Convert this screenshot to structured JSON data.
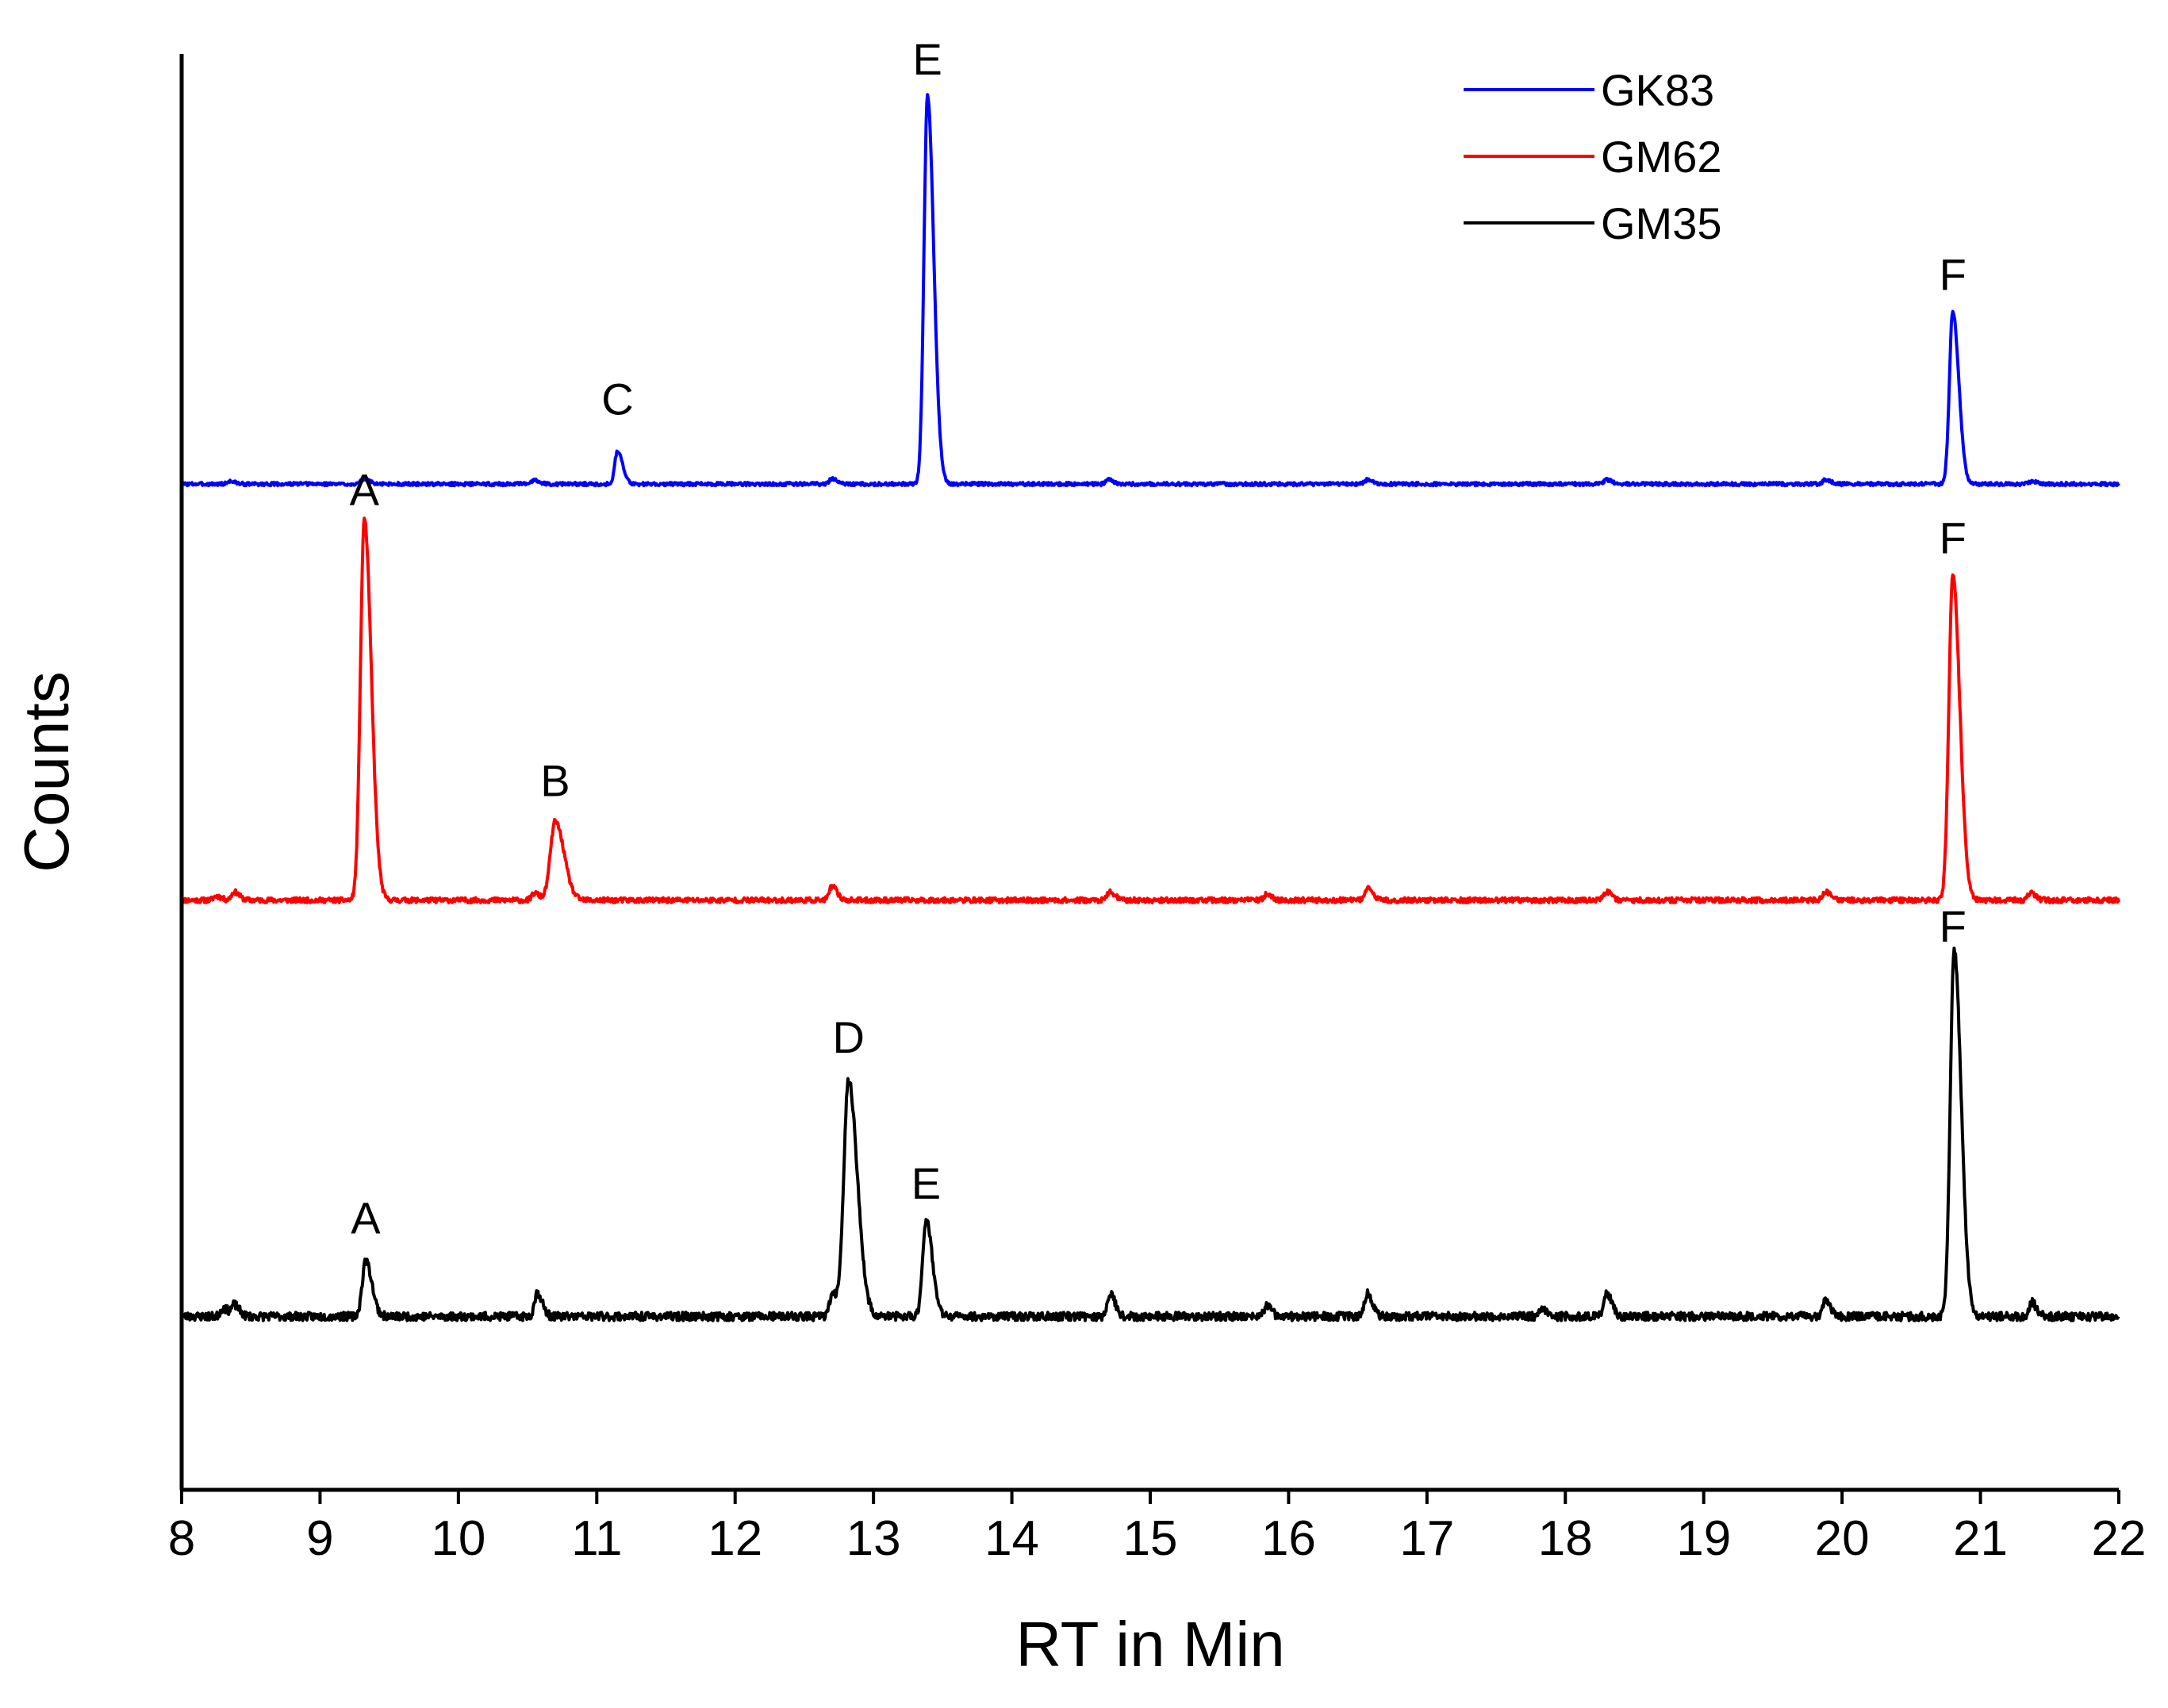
{
  "chart_data": {
    "type": "line",
    "title": "",
    "xlabel": "RT in Min",
    "ylabel": "Counts",
    "xlim": [
      8,
      22
    ],
    "ylim": [
      -0.35,
      10
    ],
    "x_ticks": [
      "8",
      "9",
      "10",
      "11",
      "12",
      "13",
      "14",
      "15",
      "16",
      "17",
      "18",
      "19",
      "20",
      "21",
      "22"
    ],
    "y_ticks_shown": false,
    "grid": false,
    "legend_position": "top-right",
    "series": [
      {
        "name": "GK83",
        "color": "#0000ff",
        "baseline": 6.9,
        "noise_seed": 3,
        "noise_amp": 0.012,
        "peaks": [
          {
            "x": 8.35,
            "h": 0.02,
            "w": 0.02
          },
          {
            "x": 9.32,
            "h": 0.04,
            "w": 0.02
          },
          {
            "x": 10.55,
            "h": 0.03,
            "w": 0.02
          },
          {
            "x": 11.15,
            "h": 0.24,
            "w": 0.02
          },
          {
            "x": 12.7,
            "h": 0.04,
            "w": 0.02
          },
          {
            "x": 13.39,
            "h": 2.8,
            "w": 0.025
          },
          {
            "x": 14.7,
            "h": 0.03,
            "w": 0.02
          },
          {
            "x": 16.57,
            "h": 0.03,
            "w": 0.02
          },
          {
            "x": 18.3,
            "h": 0.03,
            "w": 0.02
          },
          {
            "x": 19.88,
            "h": 0.03,
            "w": 0.02
          },
          {
            "x": 20.8,
            "h": 1.25,
            "w": 0.024
          },
          {
            "x": 21.37,
            "h": 0.02,
            "w": 0.02
          }
        ]
      },
      {
        "name": "GM62",
        "color": "#ff0000",
        "baseline": 3.9,
        "noise_seed": 11,
        "noise_amp": 0.018,
        "peaks": [
          {
            "x": 8.25,
            "h": 0.03,
            "w": 0.02
          },
          {
            "x": 8.38,
            "h": 0.06,
            "w": 0.02
          },
          {
            "x": 9.32,
            "h": 2.75,
            "w": 0.028
          },
          {
            "x": 10.55,
            "h": 0.05,
            "w": 0.02
          },
          {
            "x": 10.7,
            "h": 0.57,
            "w": 0.035
          },
          {
            "x": 12.7,
            "h": 0.1,
            "w": 0.02
          },
          {
            "x": 14.71,
            "h": 0.06,
            "w": 0.02
          },
          {
            "x": 15.84,
            "h": 0.04,
            "w": 0.02
          },
          {
            "x": 16.57,
            "h": 0.09,
            "w": 0.02
          },
          {
            "x": 18.3,
            "h": 0.06,
            "w": 0.02
          },
          {
            "x": 19.88,
            "h": 0.06,
            "w": 0.02
          },
          {
            "x": 20.8,
            "h": 2.35,
            "w": 0.028
          },
          {
            "x": 21.36,
            "h": 0.05,
            "w": 0.02
          }
        ]
      },
      {
        "name": "GM35",
        "color": "#000000",
        "baseline": 0.9,
        "noise_seed": 23,
        "noise_amp": 0.03,
        "peaks": [
          {
            "x": 8.3,
            "h": 0.06,
            "w": 0.02
          },
          {
            "x": 8.38,
            "h": 0.08,
            "w": 0.02
          },
          {
            "x": 9.33,
            "h": 0.4,
            "w": 0.025
          },
          {
            "x": 10.57,
            "h": 0.17,
            "w": 0.02
          },
          {
            "x": 12.7,
            "h": 0.15,
            "w": 0.02
          },
          {
            "x": 12.82,
            "h": 1.7,
            "w": 0.035
          },
          {
            "x": 13.38,
            "h": 0.7,
            "w": 0.025
          },
          {
            "x": 14.71,
            "h": 0.17,
            "w": 0.02
          },
          {
            "x": 15.84,
            "h": 0.07,
            "w": 0.02
          },
          {
            "x": 16.57,
            "h": 0.17,
            "w": 0.02
          },
          {
            "x": 17.83,
            "h": 0.05,
            "w": 0.02
          },
          {
            "x": 18.3,
            "h": 0.17,
            "w": 0.02
          },
          {
            "x": 19.88,
            "h": 0.12,
            "w": 0.02
          },
          {
            "x": 20.81,
            "h": 2.65,
            "w": 0.028
          },
          {
            "x": 21.37,
            "h": 0.1,
            "w": 0.02
          }
        ]
      }
    ],
    "annotations": [
      {
        "text": "E",
        "x": 13.39,
        "y": 9.85,
        "color": "#000000"
      },
      {
        "text": "C",
        "x": 11.15,
        "y": 7.4,
        "color": "#000000"
      },
      {
        "text": "F",
        "x": 20.8,
        "y": 8.3,
        "color": "#000000"
      },
      {
        "text": "A",
        "x": 9.32,
        "y": 6.75,
        "color": "#000000"
      },
      {
        "text": "B",
        "x": 10.7,
        "y": 4.65,
        "color": "#000000"
      },
      {
        "text": "F",
        "x": 20.8,
        "y": 6.4,
        "color": "#000000"
      },
      {
        "text": "F",
        "x": 20.8,
        "y": 3.6,
        "color": "#000000"
      },
      {
        "text": "D",
        "x": 12.82,
        "y": 2.8,
        "color": "#000000"
      },
      {
        "text": "E",
        "x": 13.38,
        "y": 1.75,
        "color": "#000000"
      },
      {
        "text": "A",
        "x": 9.33,
        "y": 1.5,
        "color": "#000000"
      }
    ]
  }
}
